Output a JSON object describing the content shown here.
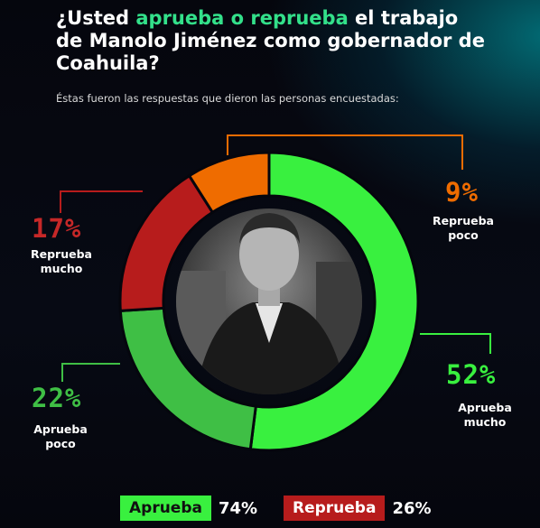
{
  "title": {
    "before": "¿Usted ",
    "highlight": "aprueba o reprueba",
    "after": " el trabajo de Manolo Jiménez como gobernador de Coahuila?"
  },
  "subtitle": "Éstas fueron las respuestas que dieron las personas encuestadas:",
  "colors": {
    "aprueba_mucho": "#39f03f",
    "aprueba_poco": "#3fbf45",
    "reprueba_mucho": "#b71c1c",
    "reprueba_poco": "#ef6c00",
    "highlight": "#33e08a"
  },
  "chart_data": {
    "type": "pie",
    "variant": "donut",
    "center_image": "portrait-photo",
    "slices": [
      {
        "label": "Aprueba mucho",
        "value": 52,
        "text": "52%",
        "color": "#39f03f"
      },
      {
        "label": "Aprueba poco",
        "value": 22,
        "text": "22%",
        "color": "#3fbf45"
      },
      {
        "label": "Reprueba mucho",
        "value": 17,
        "text": "17%",
        "color": "#b71c1c"
      },
      {
        "label": "Reprueba poco",
        "value": 9,
        "text": "9%",
        "color": "#ef6c00"
      }
    ],
    "totals": [
      {
        "label": "Aprueba",
        "value": 74,
        "text": "74%",
        "color": "#39f03f"
      },
      {
        "label": "Reprueba",
        "value": 26,
        "text": "26%",
        "color": "#b71c1c"
      }
    ]
  }
}
